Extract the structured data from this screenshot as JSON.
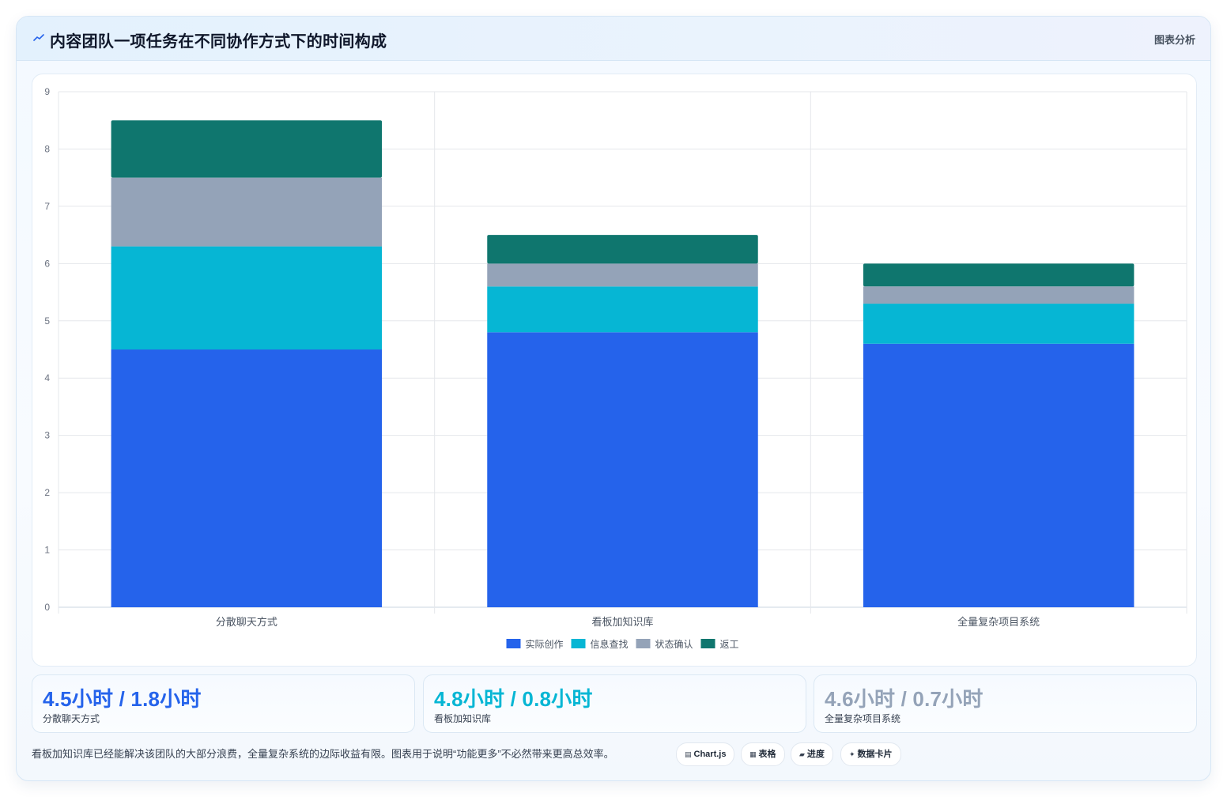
{
  "header": {
    "title": "内容团队一项任务在不同协作方式下的时间构成",
    "tag": "图表分析"
  },
  "colors": {
    "actual": "#2563eb",
    "search": "#06b6d4",
    "status": "#94a3b8",
    "rework": "#0f766e"
  },
  "chart_data": {
    "type": "bar",
    "stacked": true,
    "categories": [
      "分散聊天方式",
      "看板加知识库",
      "全量复杂项目系统"
    ],
    "series": [
      {
        "name": "实际创作",
        "color": "#2563eb",
        "values": [
          4.5,
          4.8,
          4.6
        ]
      },
      {
        "name": "信息查找",
        "color": "#06b6d4",
        "values": [
          1.8,
          0.8,
          0.7
        ]
      },
      {
        "name": "状态确认",
        "color": "#94a3b8",
        "values": [
          1.2,
          0.4,
          0.3
        ]
      },
      {
        "name": "返工",
        "color": "#0f766e",
        "values": [
          1.0,
          0.5,
          0.4
        ]
      }
    ],
    "ylim": [
      0,
      9
    ],
    "yticks": [
      "0",
      "1",
      "2",
      "3",
      "4",
      "5",
      "6",
      "7",
      "8",
      "9"
    ],
    "grid": true,
    "legend": "bottom"
  },
  "stats": [
    {
      "value": "4.5小时 / 1.8小时",
      "label": "分散聊天方式",
      "color": "#2563eb"
    },
    {
      "value": "4.8小时 / 0.8小时",
      "label": "看板加知识库",
      "color": "#06b6d4"
    },
    {
      "value": "4.6小时 / 0.7小时",
      "label": "全量复杂项目系统",
      "color": "#94a3b8"
    }
  ],
  "footer": {
    "note": "看板加知识库已经能解决该团队的大部分浪费，全量复杂系统的边际收益有限。图表用于说明“功能更多”不必然带来更高总效率。",
    "chips": [
      {
        "icon": "▤",
        "label": "Chart.js"
      },
      {
        "icon": "▦",
        "label": "表格"
      },
      {
        "icon": "▰",
        "label": "进度"
      },
      {
        "icon": "✦",
        "label": "数据卡片"
      }
    ]
  }
}
